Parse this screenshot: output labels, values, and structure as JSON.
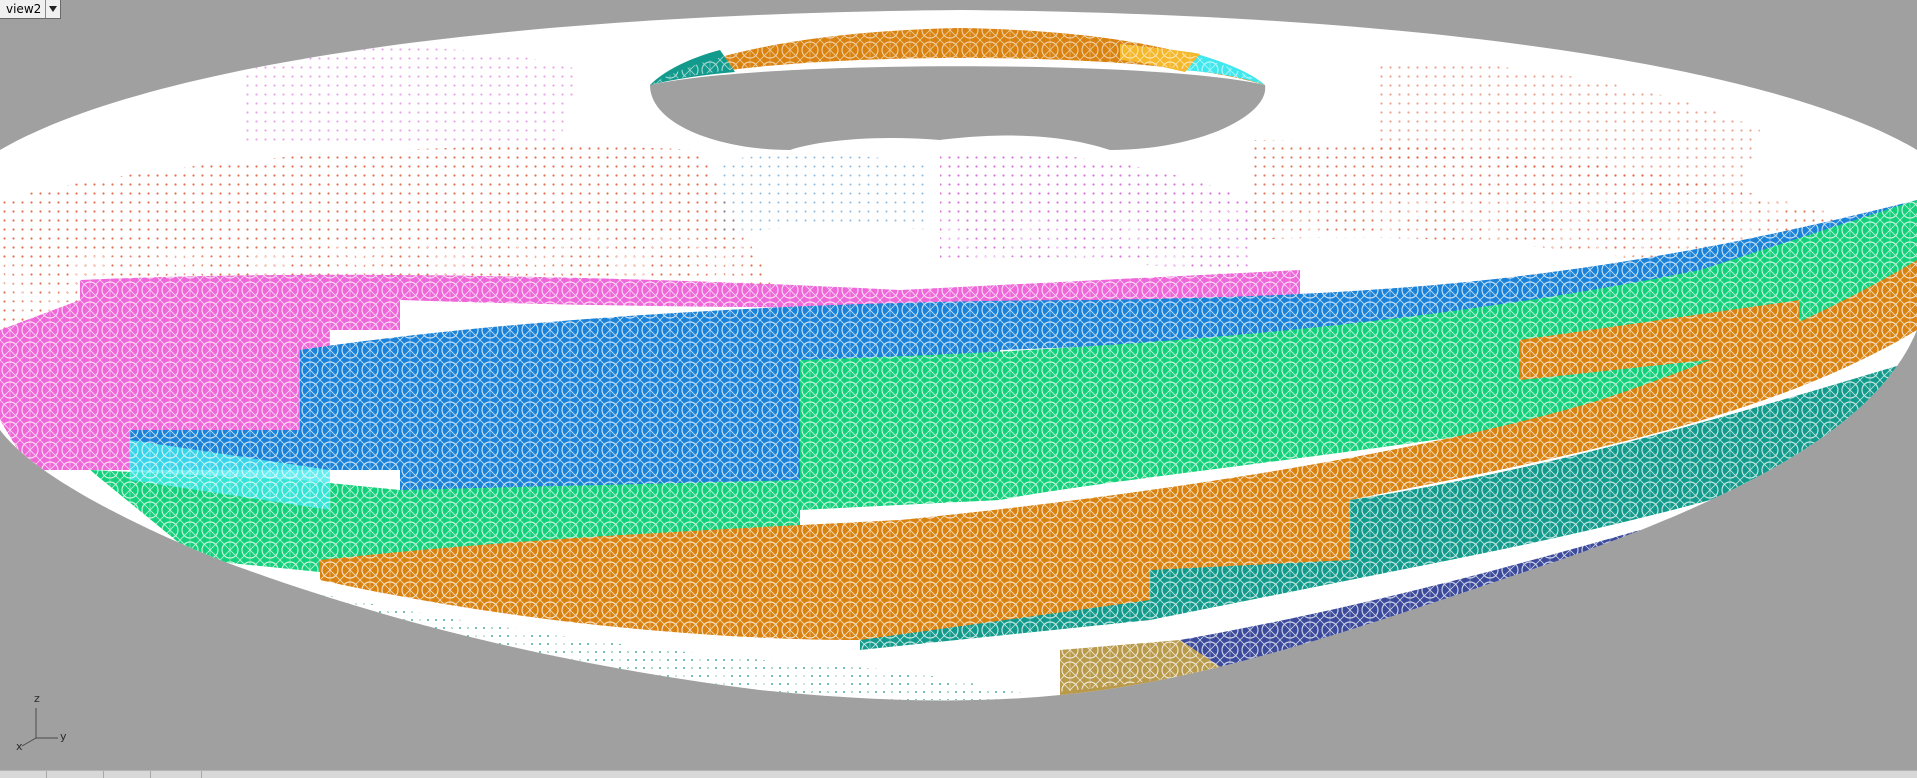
{
  "viewport": {
    "tab_label": "view2",
    "dropdown_icon": "chevron-down-icon",
    "background_color": "#a0a0a0"
  },
  "axis_widget": {
    "x_label": "x",
    "y_label": "y",
    "z_label": "z"
  },
  "surface": {
    "object": "torus mesh",
    "base_color": "#ffffff",
    "panel_colors": {
      "orange": "#d9820f",
      "teal": "#129b8c",
      "green": "#12d17a",
      "blue": "#1a82d8",
      "magenta": "#ee66d8",
      "cyan": "#40e8ee",
      "red_dots": "#e05530",
      "navy": "#1a2a8a",
      "gold": "#f4b82a",
      "tan": "#b89a4a"
    }
  }
}
